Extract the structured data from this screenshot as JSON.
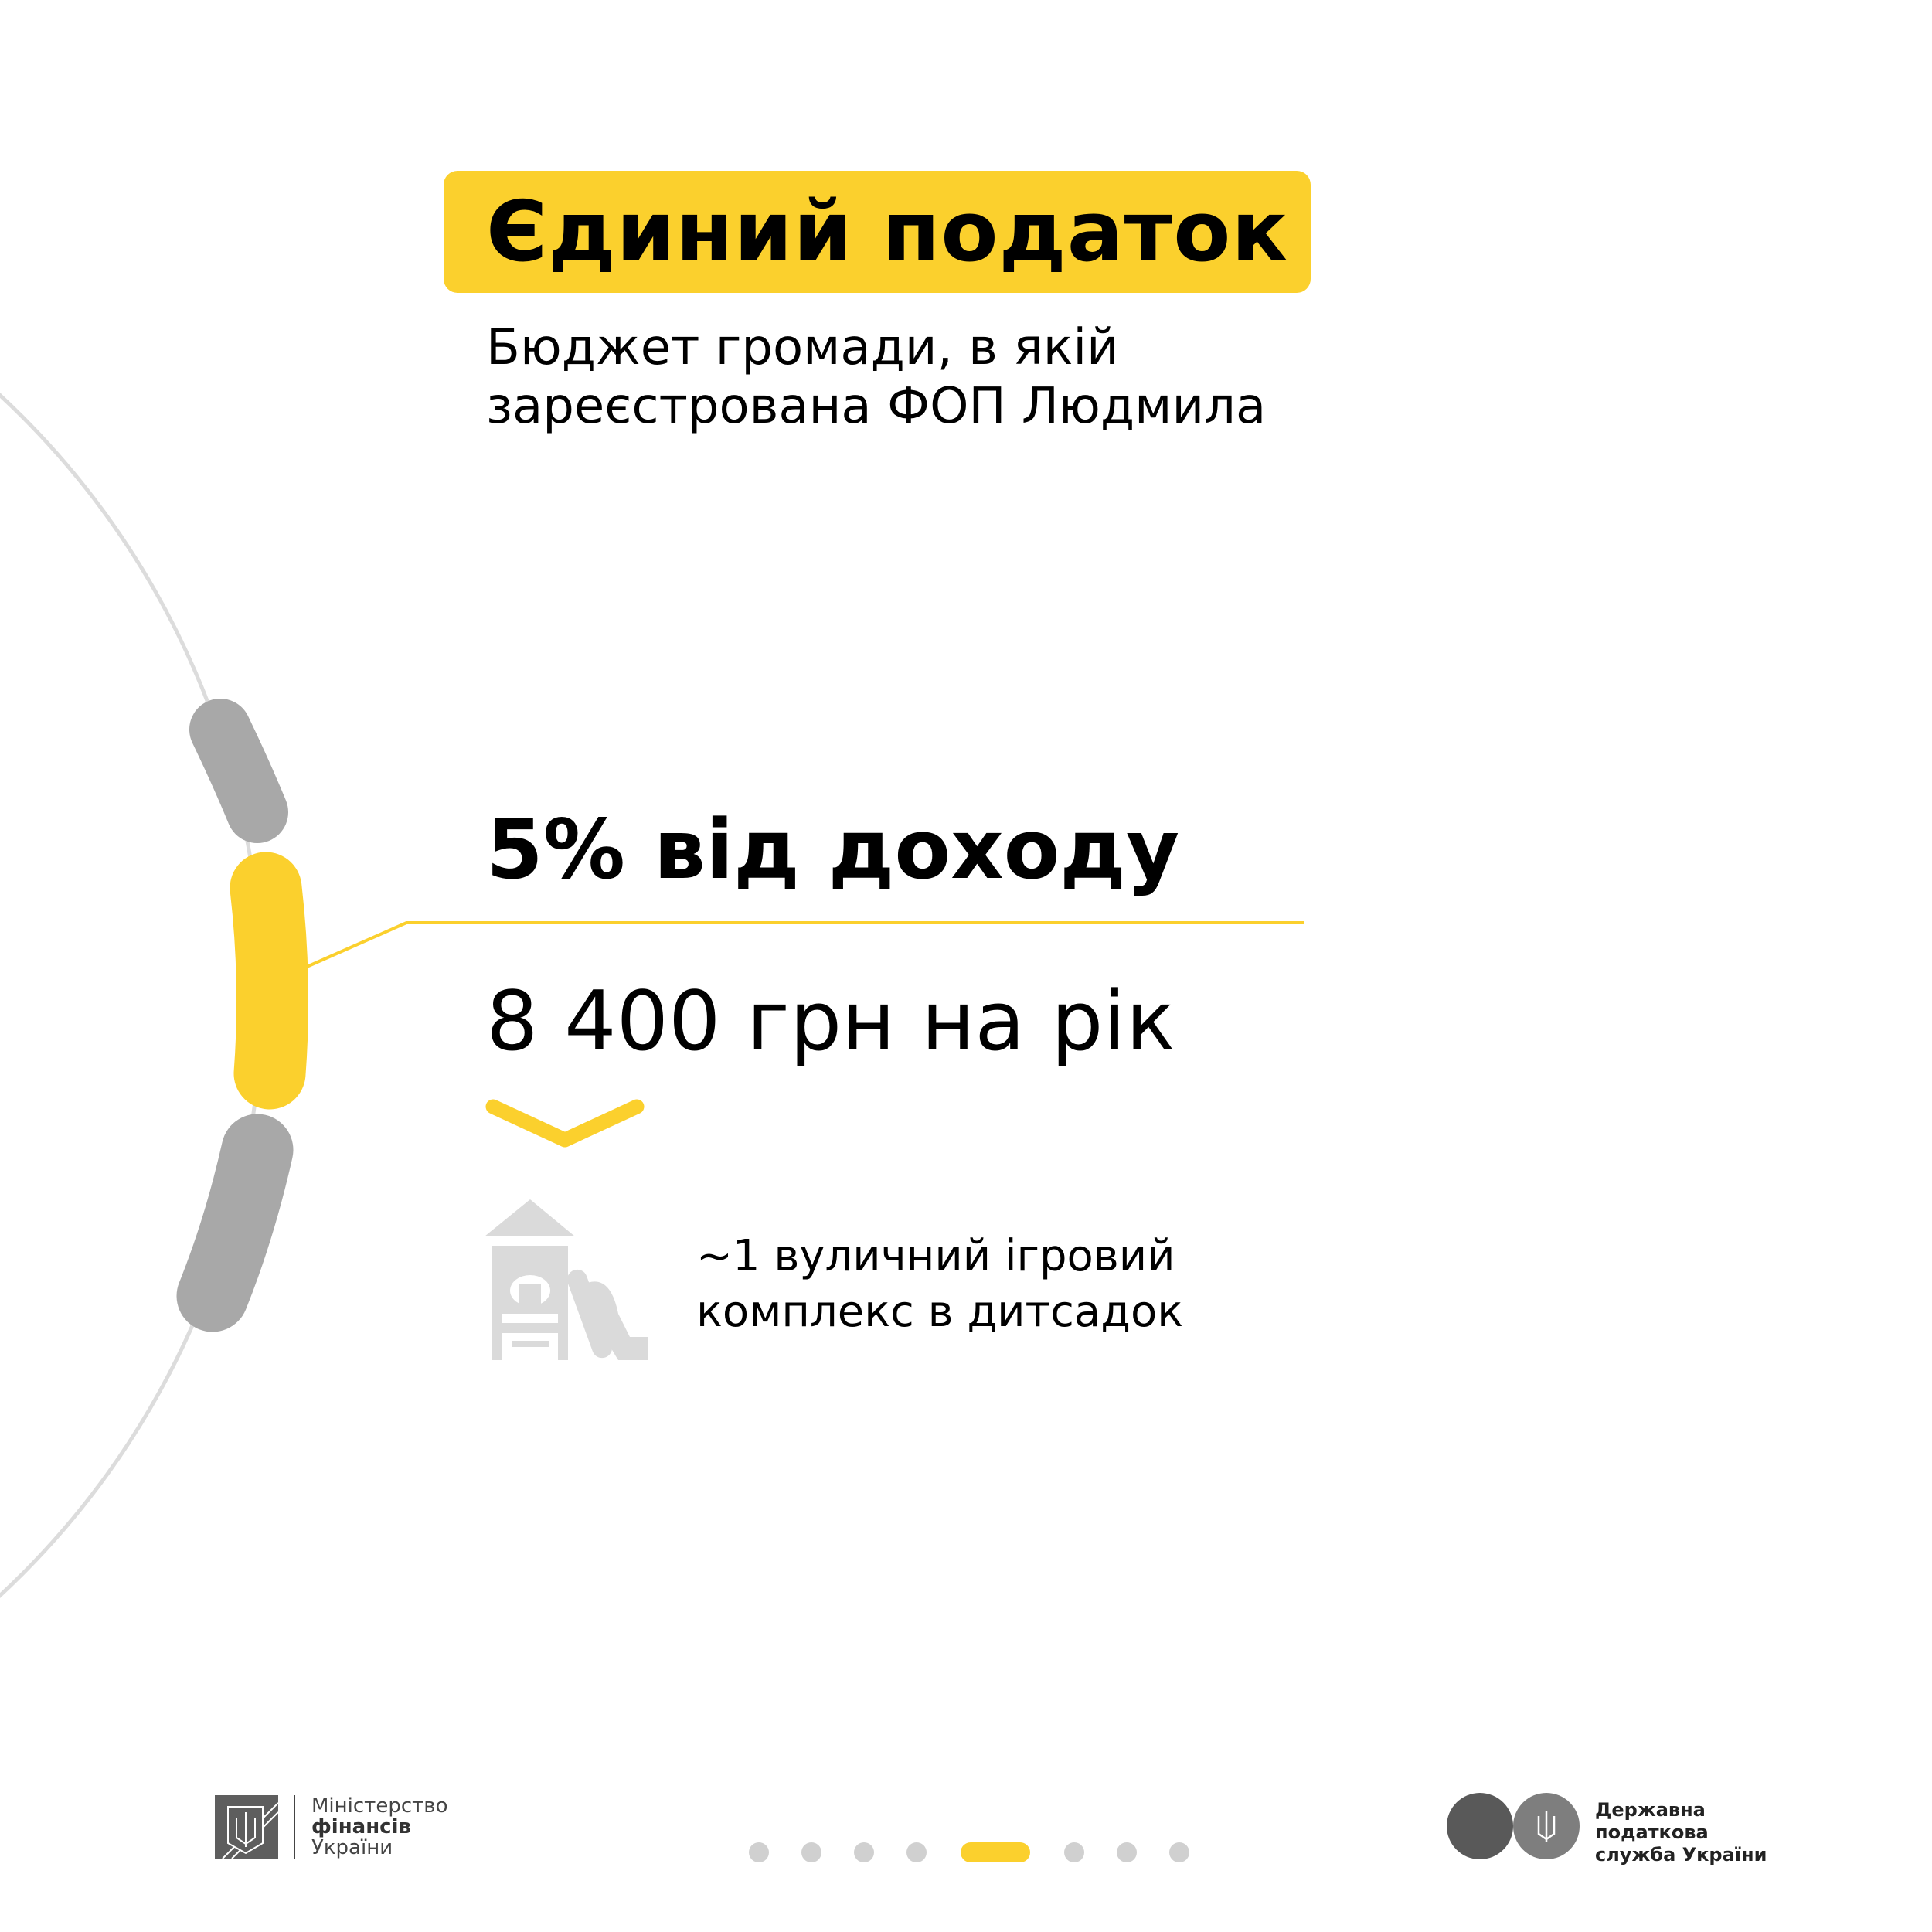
{
  "header": {
    "title": "Єдиний податок",
    "subtitle_line1": "Бюджет громади, в якій",
    "subtitle_line2": "зареєстрована ФОП Людмила"
  },
  "main": {
    "rate": "5% від доходу",
    "amount": "8 400 грн на рік",
    "equivalent_line1": "~1 вуличний ігровий",
    "equivalent_line2": "комплекс в дитсадок",
    "equivalent_icon": "playground-icon"
  },
  "pagination": {
    "total": 8,
    "active_index": 4
  },
  "footer": {
    "minfin_line1": "Міністерство",
    "minfin_line2": "фінансів",
    "minfin_line3": "України",
    "dps_line1": "Державна",
    "dps_line2": "податкова",
    "dps_line3": "служба України"
  },
  "colors": {
    "accent": "#FBD02D",
    "gray": "#A8A8A8",
    "light_gray": "#DADADA"
  }
}
